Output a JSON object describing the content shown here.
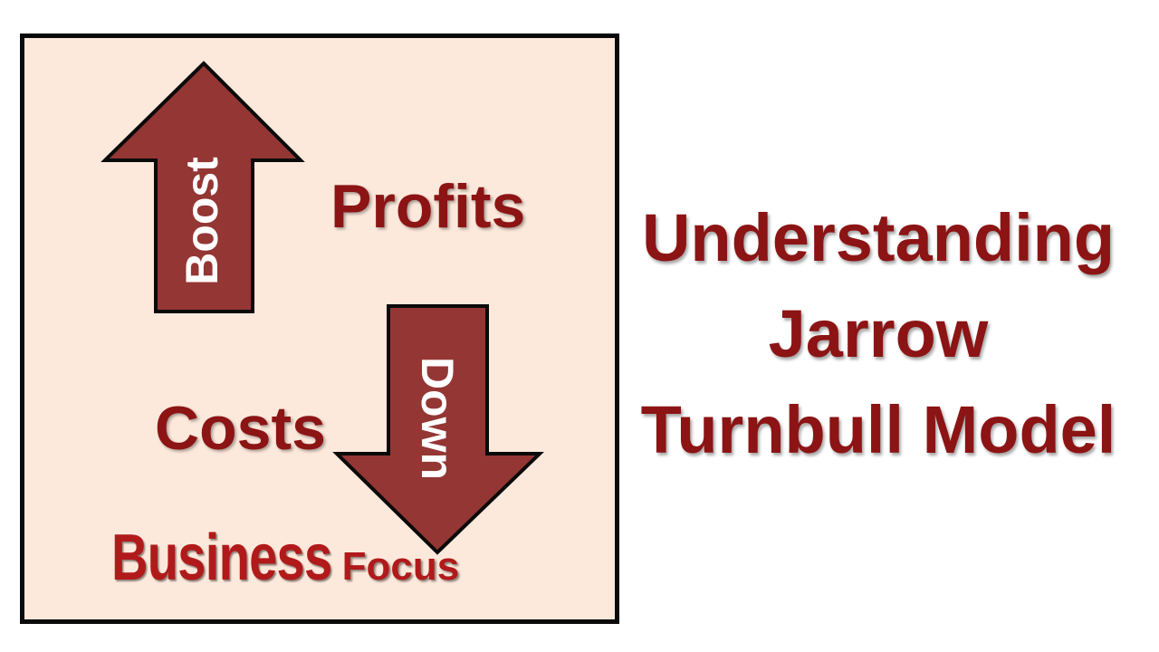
{
  "logo": {
    "arrow_up_label": "Boost",
    "word_profits": "Profits",
    "word_costs": "Costs",
    "arrow_down_label": "Down",
    "brand_main": "Business",
    "brand_sub": "Focus",
    "colors": {
      "arrow_fill": "#943634",
      "text": "#8c1414",
      "background": "#fde9dc",
      "border": "#0a0a0a"
    }
  },
  "title": {
    "line1": "Understanding",
    "line2": "Jarrow",
    "line3": "Turnbull Model"
  }
}
